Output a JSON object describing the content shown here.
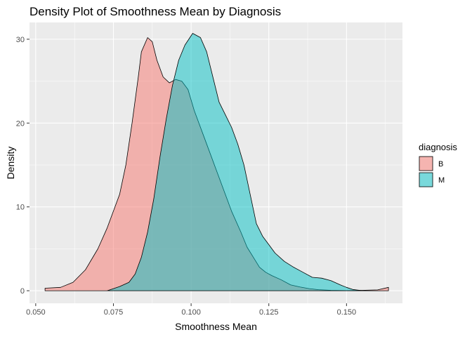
{
  "chart_data": {
    "type": "area",
    "title": "Density Plot of Smoothness Mean by Diagnosis",
    "xlabel": "Smoothness Mean",
    "ylabel": "Density",
    "xlim": [
      0.048,
      0.168
    ],
    "ylim": [
      -1.5,
      32
    ],
    "x_ticks": [
      0.05,
      0.075,
      0.1,
      0.125,
      0.15
    ],
    "x_tick_labels": [
      "0.050",
      "0.075",
      "0.100",
      "0.125",
      "0.150"
    ],
    "y_ticks": [
      0,
      10,
      20,
      30
    ],
    "y_tick_labels": [
      "0",
      "10",
      "20",
      "30"
    ],
    "grid": true,
    "legend": {
      "title": "diagnosis",
      "position": "right"
    },
    "series": [
      {
        "name": "B",
        "color": "#F8766D",
        "points": [
          [
            0.053,
            0.3
          ],
          [
            0.058,
            0.4
          ],
          [
            0.062,
            1.0
          ],
          [
            0.066,
            2.5
          ],
          [
            0.07,
            5.0
          ],
          [
            0.073,
            7.5
          ],
          [
            0.075,
            9.5
          ],
          [
            0.077,
            11.5
          ],
          [
            0.079,
            15.0
          ],
          [
            0.081,
            20.0
          ],
          [
            0.083,
            25.5
          ],
          [
            0.084,
            28.5
          ],
          [
            0.086,
            30.2
          ],
          [
            0.0875,
            29.7
          ],
          [
            0.089,
            27.5
          ],
          [
            0.091,
            25.5
          ],
          [
            0.093,
            24.8
          ],
          [
            0.095,
            25.2
          ],
          [
            0.097,
            25.0
          ],
          [
            0.099,
            24.0
          ],
          [
            0.101,
            21.5
          ],
          [
            0.104,
            18.5
          ],
          [
            0.106,
            16.5
          ],
          [
            0.108,
            14.5
          ],
          [
            0.11,
            12.5
          ],
          [
            0.113,
            9.5
          ],
          [
            0.116,
            7.0
          ],
          [
            0.118,
            5.2
          ],
          [
            0.12,
            4.0
          ],
          [
            0.122,
            2.8
          ],
          [
            0.124,
            2.2
          ],
          [
            0.126,
            1.8
          ],
          [
            0.129,
            1.3
          ],
          [
            0.132,
            0.7
          ],
          [
            0.135,
            0.45
          ],
          [
            0.138,
            0.25
          ],
          [
            0.141,
            0.12
          ],
          [
            0.145,
            0.05
          ],
          [
            0.15,
            0.02
          ],
          [
            0.155,
            0.05
          ],
          [
            0.16,
            0.1
          ],
          [
            0.1635,
            0.4
          ]
        ]
      },
      {
        "name": "M",
        "color": "#00BFC4",
        "points": [
          [
            0.073,
            0.0
          ],
          [
            0.077,
            0.5
          ],
          [
            0.08,
            1.0
          ],
          [
            0.082,
            2.0
          ],
          [
            0.084,
            4.0
          ],
          [
            0.086,
            7.0
          ],
          [
            0.088,
            11.0
          ],
          [
            0.09,
            16.0
          ],
          [
            0.092,
            20.5
          ],
          [
            0.094,
            24.5
          ],
          [
            0.096,
            27.5
          ],
          [
            0.098,
            29.3
          ],
          [
            0.1005,
            30.7
          ],
          [
            0.103,
            30.2
          ],
          [
            0.105,
            28.5
          ],
          [
            0.107,
            25.5
          ],
          [
            0.109,
            22.5
          ],
          [
            0.111,
            21.0
          ],
          [
            0.113,
            19.5
          ],
          [
            0.115,
            17.5
          ],
          [
            0.117,
            15.0
          ],
          [
            0.119,
            11.5
          ],
          [
            0.121,
            8.0
          ],
          [
            0.123,
            6.5
          ],
          [
            0.125,
            5.5
          ],
          [
            0.127,
            4.5
          ],
          [
            0.13,
            3.5
          ],
          [
            0.133,
            2.8
          ],
          [
            0.136,
            2.2
          ],
          [
            0.139,
            1.6
          ],
          [
            0.142,
            1.5
          ],
          [
            0.145,
            1.2
          ],
          [
            0.148,
            0.7
          ],
          [
            0.15,
            0.4
          ],
          [
            0.152,
            0.15
          ],
          [
            0.155,
            0.02
          ]
        ]
      }
    ]
  }
}
